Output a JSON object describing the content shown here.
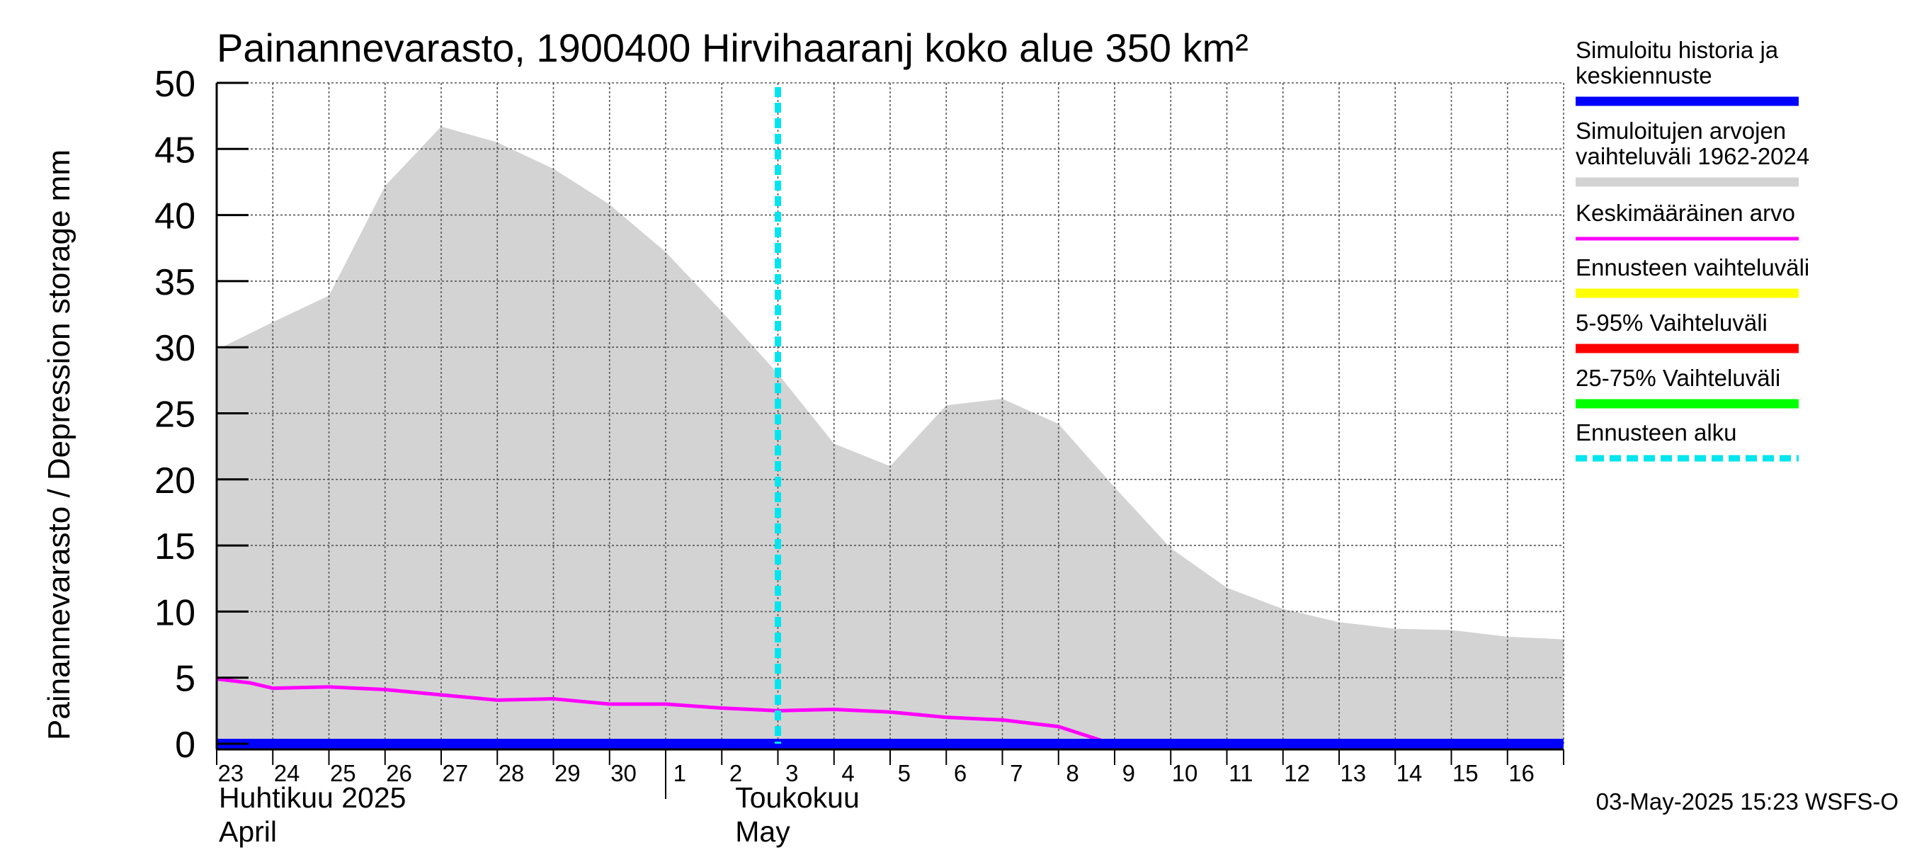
{
  "chart_data": {
    "type": "area",
    "title": "Painannevarasto, 1900400 Hirvihaaranj koko alue 350 km²",
    "ylabel": "Painannevarasto / Depression storage    mm",
    "ylim": [
      0,
      50
    ],
    "yticks": [
      "0",
      "5",
      "10",
      "15",
      "20",
      "25",
      "30",
      "35",
      "40",
      "45",
      "50"
    ],
    "xlim": [
      0,
      24
    ],
    "x_tick_labels": [
      "23",
      "24",
      "25",
      "26",
      "27",
      "28",
      "29",
      "30",
      "1",
      "2",
      "3",
      "4",
      "5",
      "6",
      "7",
      "8",
      "9",
      "10",
      "11",
      "12",
      "13",
      "14",
      "15",
      "16"
    ],
    "month_labels": [
      {
        "line1": "Huhtikuu  2025",
        "line2": "April",
        "day_index": 0
      },
      {
        "line1": "Toukokuu",
        "line2": "May",
        "day_index": 9
      }
    ],
    "grid": true,
    "legend_position": "right",
    "forecast_start": 10.0,
    "series": [
      {
        "name": "Simuloitujen arvojen vaihteluväli 1962-2024",
        "kind": "band",
        "color": "#d3d3d3",
        "x": [
          0,
          1,
          2,
          3,
          4,
          5,
          6,
          7,
          8,
          9,
          10,
          11,
          12,
          13,
          14,
          15,
          16,
          17,
          18,
          19,
          20,
          21,
          22,
          23,
          24
        ],
        "upper": [
          29.8,
          31.9,
          33.9,
          42.2,
          46.7,
          45.5,
          43.5,
          40.8,
          37.2,
          32.7,
          28.0,
          22.7,
          21.0,
          25.6,
          26.1,
          24.2,
          19.4,
          14.8,
          11.8,
          10.2,
          9.2,
          8.7,
          8.6,
          8.1,
          7.9
        ],
        "lower": [
          0,
          0,
          0,
          0,
          0,
          0,
          0,
          0,
          0,
          0,
          0,
          0,
          0,
          0,
          0,
          0,
          0,
          0,
          0,
          0,
          0,
          0,
          0,
          0,
          0
        ]
      },
      {
        "name": "Keskimääräinen arvo",
        "kind": "line",
        "color": "#ff00ff",
        "x": [
          0,
          0.6,
          1,
          2,
          3,
          4,
          5,
          6,
          7,
          8,
          9,
          10,
          11,
          12,
          13,
          14,
          15,
          15.8,
          16.5,
          17,
          18,
          19,
          20,
          21,
          22,
          23,
          24
        ],
        "y": [
          4.9,
          4.6,
          4.2,
          4.3,
          4.1,
          3.7,
          3.3,
          3.4,
          3.0,
          3.0,
          2.7,
          2.5,
          2.6,
          2.4,
          2.0,
          1.8,
          1.3,
          0.2,
          -0.1,
          -0.2,
          -0.2,
          -0.2,
          -0.2,
          -0.2,
          -0.2,
          -0.2,
          -0.2
        ]
      },
      {
        "name": "Simuloitu historia ja keskiennuste",
        "kind": "line",
        "color": "#0000ff",
        "x": [
          0,
          24
        ],
        "y": [
          0.0,
          0.0
        ]
      }
    ],
    "legend": [
      {
        "label": "Simuloitu historia ja keskiennuste",
        "color": "#0000ff",
        "style": "thick"
      },
      {
        "label": "Simuloitujen arvojen vaihteluväli 1962-2024",
        "color": "#d3d3d3",
        "style": "band"
      },
      {
        "label": "Keskimääräinen arvo",
        "color": "#ff00ff",
        "style": "thin"
      },
      {
        "label": "Ennusteen vaihteluväli",
        "color": "#ffff00",
        "style": "medium"
      },
      {
        "label": "5-95% Vaihteluväli",
        "color": "#ff0000",
        "style": "medium"
      },
      {
        "label": "25-75% Vaihteluväli",
        "color": "#00ff00",
        "style": "medium"
      },
      {
        "label": "Ennusteen alku",
        "color": "#00e5ee",
        "style": "dashed"
      }
    ],
    "footer": "03-May-2025 15:23 WSFS-O"
  }
}
